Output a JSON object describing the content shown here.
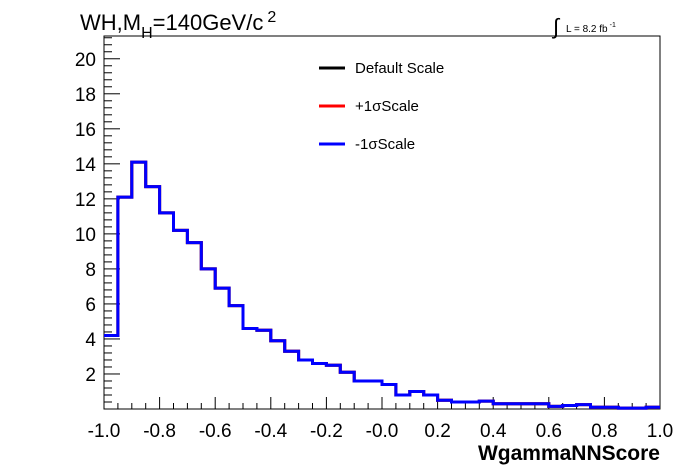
{
  "title": {
    "main": "WH,M",
    "sub": "H",
    "rest": "=140GeV/c",
    "sup": "2"
  },
  "luminosity": {
    "integral_sign": "∫",
    "text": "L = 8.2 fb",
    "sup": "-1"
  },
  "chart_data": {
    "type": "line",
    "xlabel": "WgammaNNScore",
    "ylabel": "",
    "xlim": [
      -1.0,
      1.0
    ],
    "ylim": [
      0,
      21.3
    ],
    "grid": false,
    "legend_position": "top-center",
    "x_tick_labels": [
      "-1.0",
      "-0.8",
      "-0.6",
      "-0.4",
      "-0.2",
      "-0.0",
      "0.2",
      "0.4",
      "0.6",
      "0.8",
      "1.0"
    ],
    "x_ticks": [
      -1.0,
      -0.8,
      -0.6,
      -0.4,
      -0.2,
      0.0,
      0.2,
      0.4,
      0.6,
      0.8,
      1.0
    ],
    "y_tick_labels": [
      "2",
      "4",
      "6",
      "8",
      "10",
      "12",
      "14",
      "16",
      "18",
      "20"
    ],
    "y_ticks": [
      2,
      4,
      6,
      8,
      10,
      12,
      14,
      16,
      18,
      20
    ],
    "bin_edges": [
      -1.0,
      -0.95,
      -0.9,
      -0.85,
      -0.8,
      -0.75,
      -0.7,
      -0.65,
      -0.6,
      -0.55,
      -0.5,
      -0.45,
      -0.4,
      -0.35,
      -0.3,
      -0.25,
      -0.2,
      -0.15,
      -0.1,
      -0.05,
      0.0,
      0.05,
      0.1,
      0.15,
      0.2,
      0.25,
      0.3,
      0.35,
      0.4,
      0.45,
      0.5,
      0.55,
      0.6,
      0.65,
      0.7,
      0.75,
      0.8,
      0.85,
      0.9,
      0.95,
      1.0
    ],
    "series": [
      {
        "name": "Default Scale",
        "color": "#000000",
        "values": [
          4.2,
          12.1,
          14.1,
          12.7,
          11.2,
          10.2,
          9.5,
          8.0,
          6.9,
          5.9,
          4.6,
          4.5,
          3.9,
          3.3,
          2.8,
          2.6,
          2.5,
          2.1,
          1.6,
          1.6,
          1.4,
          0.8,
          1.0,
          0.8,
          0.5,
          0.4,
          0.4,
          0.45,
          0.3,
          0.3,
          0.3,
          0.3,
          0.15,
          0.2,
          0.25,
          0.1,
          0.1,
          0.05,
          0.05,
          0.1
        ]
      },
      {
        "name": "+1σScale",
        "color": "#ff0000",
        "values": [
          4.2,
          12.1,
          14.1,
          12.7,
          11.2,
          10.2,
          9.5,
          8.0,
          6.9,
          5.9,
          4.6,
          4.5,
          3.9,
          3.3,
          2.8,
          2.6,
          2.5,
          2.1,
          1.6,
          1.6,
          1.4,
          0.8,
          1.0,
          0.8,
          0.5,
          0.4,
          0.4,
          0.45,
          0.3,
          0.3,
          0.3,
          0.3,
          0.15,
          0.2,
          0.25,
          0.1,
          0.1,
          0.05,
          0.05,
          0.1
        ]
      },
      {
        "name": "-1σScale",
        "color": "#0000ff",
        "values": [
          4.2,
          12.1,
          14.1,
          12.7,
          11.2,
          10.2,
          9.5,
          8.0,
          6.9,
          5.9,
          4.6,
          4.5,
          3.9,
          3.3,
          2.8,
          2.6,
          2.5,
          2.1,
          1.6,
          1.6,
          1.4,
          0.8,
          1.0,
          0.8,
          0.5,
          0.4,
          0.4,
          0.45,
          0.3,
          0.3,
          0.3,
          0.3,
          0.15,
          0.2,
          0.25,
          0.1,
          0.1,
          0.05,
          0.05,
          0.1
        ]
      }
    ]
  }
}
